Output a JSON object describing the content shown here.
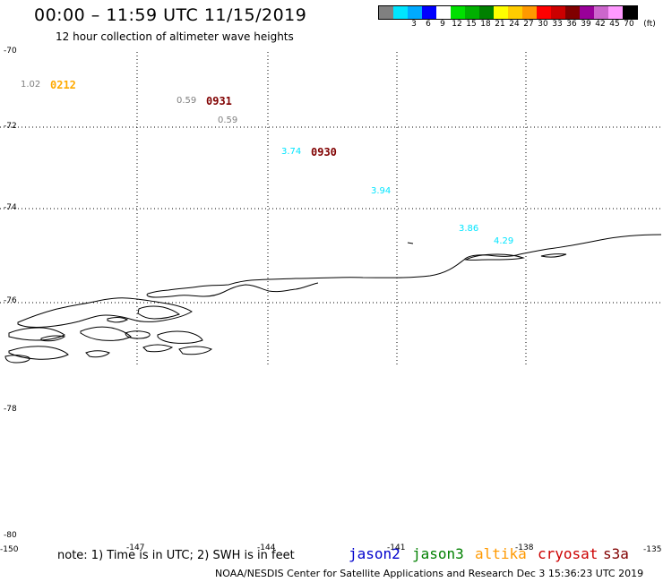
{
  "header": {
    "title": "00:00 – 11:59 UTC 11/15/2019",
    "subtitle": "12 hour collection of altimeter wave heights"
  },
  "legend": {
    "unit_label": "(ft)",
    "swatches": [
      {
        "color": "#808080",
        "label": ""
      },
      {
        "color": "#00e5ff",
        "label": "3"
      },
      {
        "color": "#00aaff",
        "label": "6"
      },
      {
        "color": "#0000ff",
        "label": "9"
      },
      {
        "color": "#ffffff",
        "label": "12"
      },
      {
        "color": "#00e000",
        "label": "15"
      },
      {
        "color": "#00b000",
        "label": "18"
      },
      {
        "color": "#008000",
        "label": "21"
      },
      {
        "color": "#ffff00",
        "label": "24"
      },
      {
        "color": "#ffcc00",
        "label": "27"
      },
      {
        "color": "#ff9900",
        "label": "30"
      },
      {
        "color": "#ff0000",
        "label": "33"
      },
      {
        "color": "#cc0000",
        "label": "36"
      },
      {
        "color": "#800000",
        "label": "39"
      },
      {
        "color": "#990099",
        "label": "42"
      },
      {
        "color": "#cc66cc",
        "label": "45"
      },
      {
        "color": "#ff99ff",
        "label": "70"
      },
      {
        "color": "#000000",
        "label": ""
      }
    ]
  },
  "axes": {
    "lat_labels": [
      "-70",
      "-72",
      "-74",
      "-76",
      "-78",
      "-78",
      "-80"
    ],
    "lon_labels": [
      "-150",
      "-147",
      "-144",
      "-141",
      "-138",
      "-135"
    ]
  },
  "observations": [
    {
      "value": "1.02",
      "color": "#808080"
    },
    {
      "value": "0.59",
      "color": "#808080"
    },
    {
      "value": "0.59",
      "color": "#808080"
    },
    {
      "value": "3.74",
      "color": "#00e5ff"
    },
    {
      "value": "3.94",
      "color": "#00e5ff"
    },
    {
      "value": "3.86",
      "color": "#00e5ff"
    },
    {
      "value": "4.29",
      "color": "#00e5ff"
    }
  ],
  "pass_times": [
    {
      "time": "0212",
      "color": "#ffaa00"
    },
    {
      "time": "0931",
      "color": "#800000"
    },
    {
      "time": "0930",
      "color": "#800000"
    }
  ],
  "footer": {
    "note": "note:  1) Time is in UTC;  2) SWH is in feet",
    "satellites": [
      {
        "name": "jason2",
        "color": "#0000cc"
      },
      {
        "name": "jason3",
        "color": "#008000"
      },
      {
        "name": "altika",
        "color": "#ff9900"
      },
      {
        "name": "cryosat",
        "color": "#cc0000"
      },
      {
        "name": "s3a",
        "color": "#800000"
      }
    ],
    "credit": "NOAA/NESDIS Center for Satellite Applications and Research     Dec  3 15:36:23 UTC 2019"
  }
}
